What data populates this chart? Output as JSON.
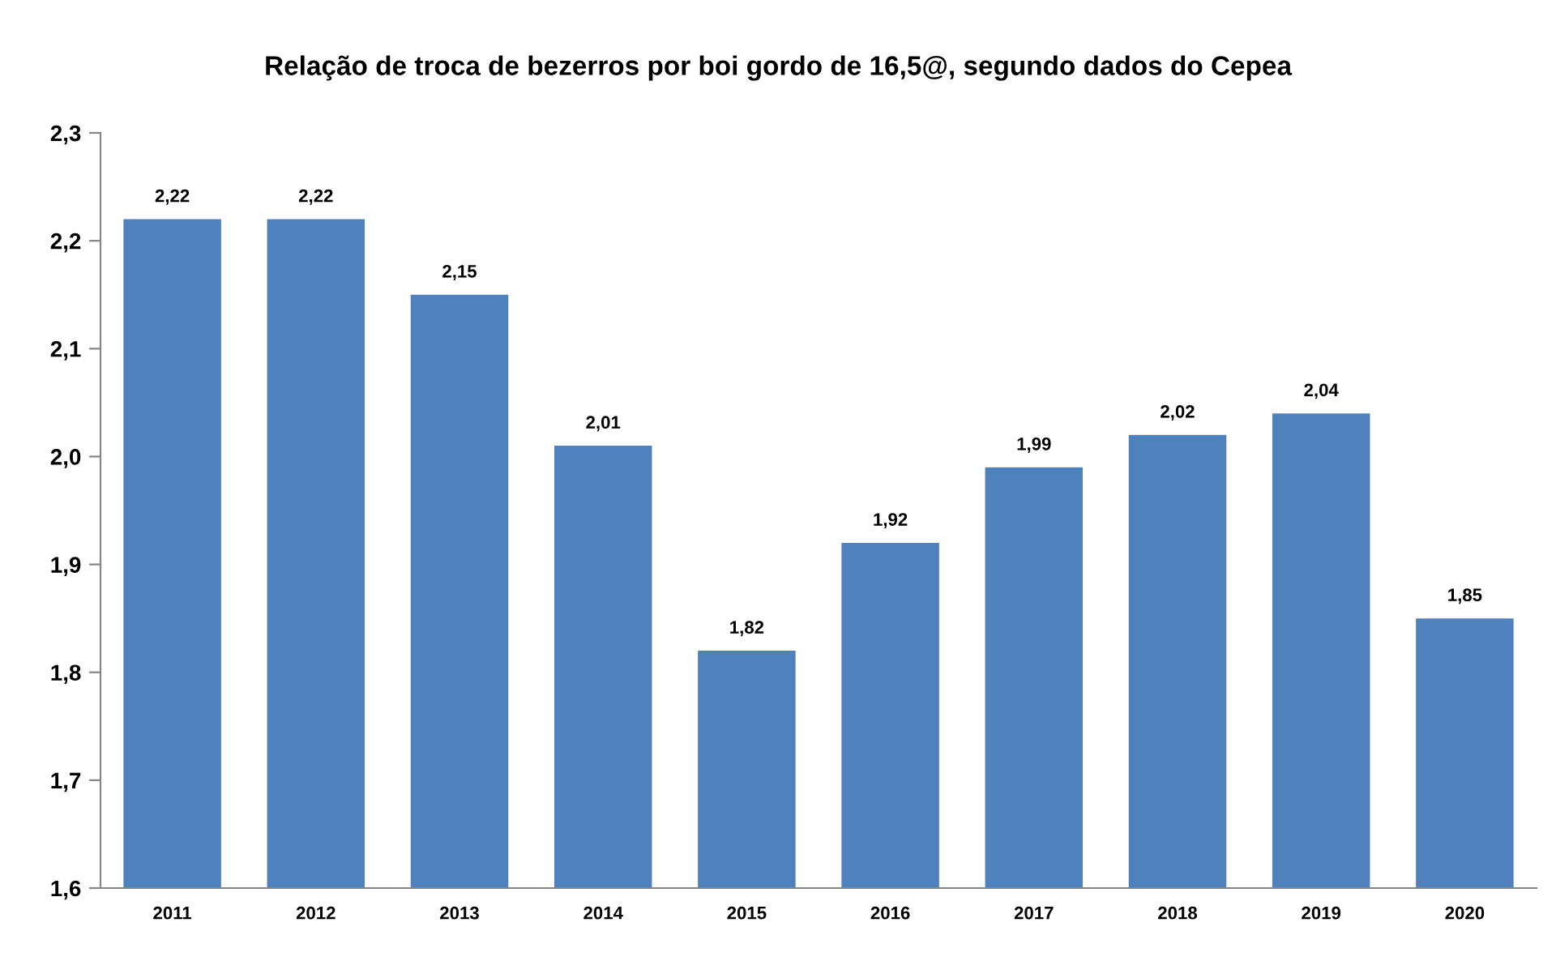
{
  "chart_data": {
    "type": "bar",
    "title": "Relação de troca de bezerros por boi gordo de 16,5@, segundo dados do Cepea",
    "categories": [
      "2011",
      "2012",
      "2013",
      "2014",
      "2015",
      "2016",
      "2017",
      "2018",
      "2019",
      "2020"
    ],
    "values": [
      2.22,
      2.22,
      2.15,
      2.01,
      1.82,
      1.92,
      1.99,
      2.02,
      2.04,
      1.85
    ],
    "value_labels": [
      "2,22",
      "2,22",
      "2,15",
      "2,01",
      "1,82",
      "1,92",
      "1,99",
      "2,02",
      "2,04",
      "1,85"
    ],
    "color": "#4f81bd",
    "ylim": [
      1.6,
      2.3
    ],
    "yticks": [
      {
        "value": 1.6,
        "label": "1,6"
      },
      {
        "value": 1.7,
        "label": "1,7"
      },
      {
        "value": 1.8,
        "label": "1,8"
      },
      {
        "value": 1.9,
        "label": "1,9"
      },
      {
        "value": 2.0,
        "label": "2,0"
      },
      {
        "value": 2.1,
        "label": "2,1"
      },
      {
        "value": 2.2,
        "label": "2,2"
      },
      {
        "value": 2.3,
        "label": "2,3"
      }
    ],
    "grid": false,
    "legend": false
  }
}
